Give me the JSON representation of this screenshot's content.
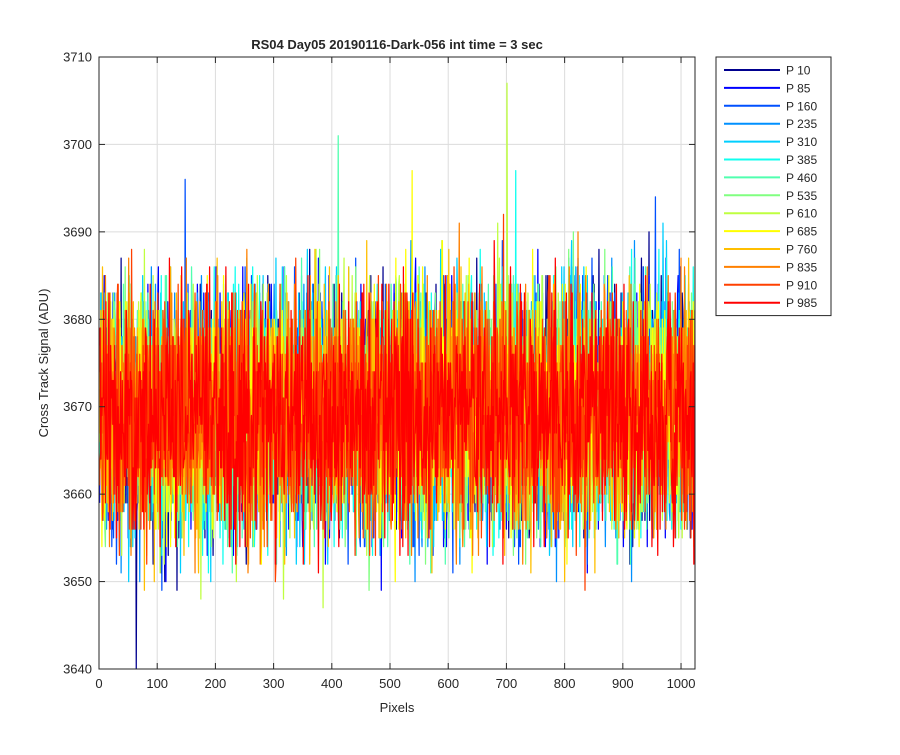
{
  "chart_data": {
    "type": "line",
    "title": "RS04 Day05 20190116-Dark-056 int time = 3 sec",
    "xlabel": "Pixels",
    "ylabel": "Cross Track Signal (ADU)",
    "xlim": [
      0,
      1024
    ],
    "ylim": [
      3640,
      3710
    ],
    "xticks": [
      0,
      100,
      200,
      300,
      400,
      500,
      600,
      700,
      800,
      900,
      1000
    ],
    "yticks": [
      3640,
      3650,
      3660,
      3670,
      3680,
      3690,
      3700,
      3710
    ],
    "grid": true,
    "legend_location": "outside-top-right",
    "noise_model": {
      "mean": 3669.5,
      "std": 7.0
    },
    "series": [
      {
        "name": "P 10",
        "color": "#00008F",
        "seed": 11
      },
      {
        "name": "P 85",
        "color": "#0000FF",
        "seed": 23
      },
      {
        "name": "P 160",
        "color": "#0050FF",
        "seed": 37
      },
      {
        "name": "P 235",
        "color": "#0090FF",
        "seed": 41
      },
      {
        "name": "P 310",
        "color": "#00CFFF",
        "seed": 53
      },
      {
        "name": "P 385",
        "color": "#10FFEF",
        "seed": 67
      },
      {
        "name": "P 460",
        "color": "#50FFAF",
        "seed": 71
      },
      {
        "name": "P 535",
        "color": "#80FF80",
        "seed": 89
      },
      {
        "name": "P 610",
        "color": "#BFFF40",
        "seed": 97
      },
      {
        "name": "P 685",
        "color": "#FFFF00",
        "seed": 101
      },
      {
        "name": "P 760",
        "color": "#FFBF00",
        "seed": 113
      },
      {
        "name": "P 835",
        "color": "#FF8000",
        "seed": 127
      },
      {
        "name": "P 910",
        "color": "#FF4000",
        "seed": 131
      },
      {
        "name": "P 985",
        "color": "#FF0000",
        "seed": 149
      }
    ],
    "peaks": [
      {
        "series": "P 10",
        "x": 63,
        "y": 3640
      },
      {
        "series": "P 160",
        "x": 147,
        "y": 3696
      },
      {
        "series": "P 460",
        "x": 410,
        "y": 3701
      },
      {
        "series": "P 685",
        "x": 537,
        "y": 3697
      },
      {
        "series": "P 610",
        "x": 700,
        "y": 3707
      },
      {
        "series": "P 385",
        "x": 715,
        "y": 3697
      },
      {
        "series": "P 160",
        "x": 955,
        "y": 3694
      }
    ]
  }
}
